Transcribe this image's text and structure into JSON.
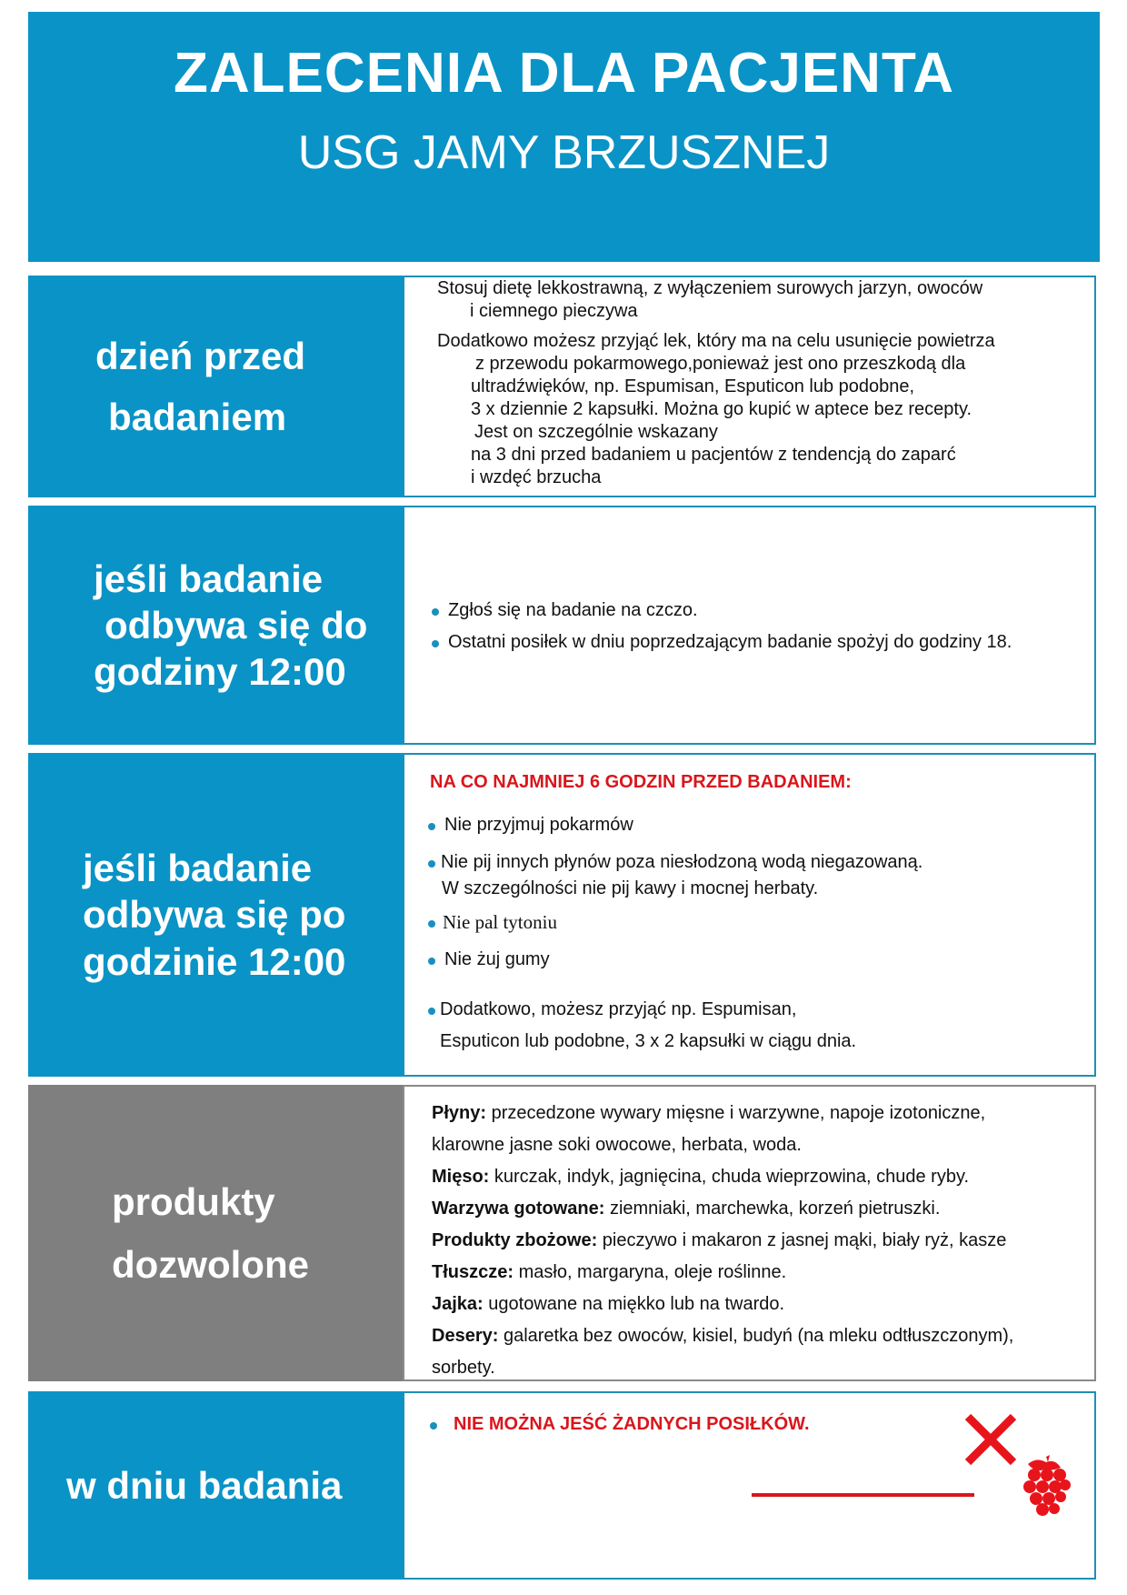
{
  "header": {
    "title": "ZALECENIA DLA PACJENTA",
    "subtitle": "USG JAMY BRZUSZNEJ"
  },
  "sections": [
    {
      "label_lines": [
        "dzień przed",
        "badaniem"
      ],
      "lines": [
        "Stosuj dietę lekkostrawną, z wyłączeniem surowych jarzyn, owoców",
        "i ciemnego pieczywa",
        "Dodatkowo możesz przyjąć lek, który ma na celu usunięcie powietrza",
        "z przewodu pokarmowego,ponieważ jest ono przeszkodą dla",
        "ultradźwięków, np. Espumisan, Esputicon lub podobne,",
        "3 x dziennie 2 kapsułki. Można go kupić w aptece bez recepty.",
        "Jest on szczególnie wskazany",
        "na 3 dni przed badaniem u pacjentów z tendencją do zaparć",
        "i wzdęć brzucha"
      ]
    },
    {
      "label_lines": [
        "jeśli badanie",
        "odbywa się do",
        "godziny 12:00"
      ],
      "bullets": [
        "Zgłoś się na badanie na czczo.",
        "Ostatni posiłek w dniu poprzedzającym badanie spożyj do godziny 18."
      ]
    },
    {
      "label_lines": [
        "jeśli badanie",
        "odbywa się po",
        "godzinie 12:00"
      ],
      "heading": "NA CO NAJMNIEJ 6 GODZIN PRZED BADANIEM:",
      "bullets": [
        "Nie przyjmuj pokarmów",
        "Nie pij innych płynów poza niesłodzoną wodą niegazowaną.",
        "W szczególności nie pij kawy i mocnej herbaty.",
        "Nie pal tytoniu",
        "Nie żuj gumy",
        "Dodatkowo, możesz przyjąć np. Espumisan,",
        "Esputicon lub podobne, 3 x 2 kapsułki w ciągu dnia."
      ]
    },
    {
      "label_lines": [
        "produkty",
        "dozwolone"
      ],
      "items": [
        {
          "k": "Płyny:",
          "v": " przecedzone wywary mięsne i warzywne, napoje izotoniczne,",
          "cont": "klarowne jasne soki owocowe, herbata, woda."
        },
        {
          "k": "Mięso:",
          "v": " kurczak, indyk, jagnięcina, chuda wieprzowina, chude ryby."
        },
        {
          "k": "Warzywa gotowane:",
          "v": " ziemniaki, marchewka, korzeń pietruszki."
        },
        {
          "k": "Produkty zbożowe:",
          "v": " pieczywo i makaron z jasnej mąki, biały ryż, kasze"
        },
        {
          "k": "Tłuszcze:",
          "v": " masło, margaryna, oleje roślinne."
        },
        {
          "k": "Jajka:",
          "v": " ugotowane na miękko lub na twardo."
        },
        {
          "k": "Desery:",
          "v": " galaretka bez owoców, kisiel, budyń (na mleku odtłuszczonym),",
          "cont": "sorbety."
        }
      ]
    },
    {
      "label_lines": [
        "w dniu badania"
      ],
      "warning": "NIE MOŻNA JEŚĆ ŻADNYCH POSIŁKÓW."
    }
  ],
  "colors": {
    "blue": "#0a93c6",
    "gray": "#7f7f7f",
    "red": "#d9161c"
  },
  "icons": [
    "cross-icon",
    "grapes-icon"
  ]
}
